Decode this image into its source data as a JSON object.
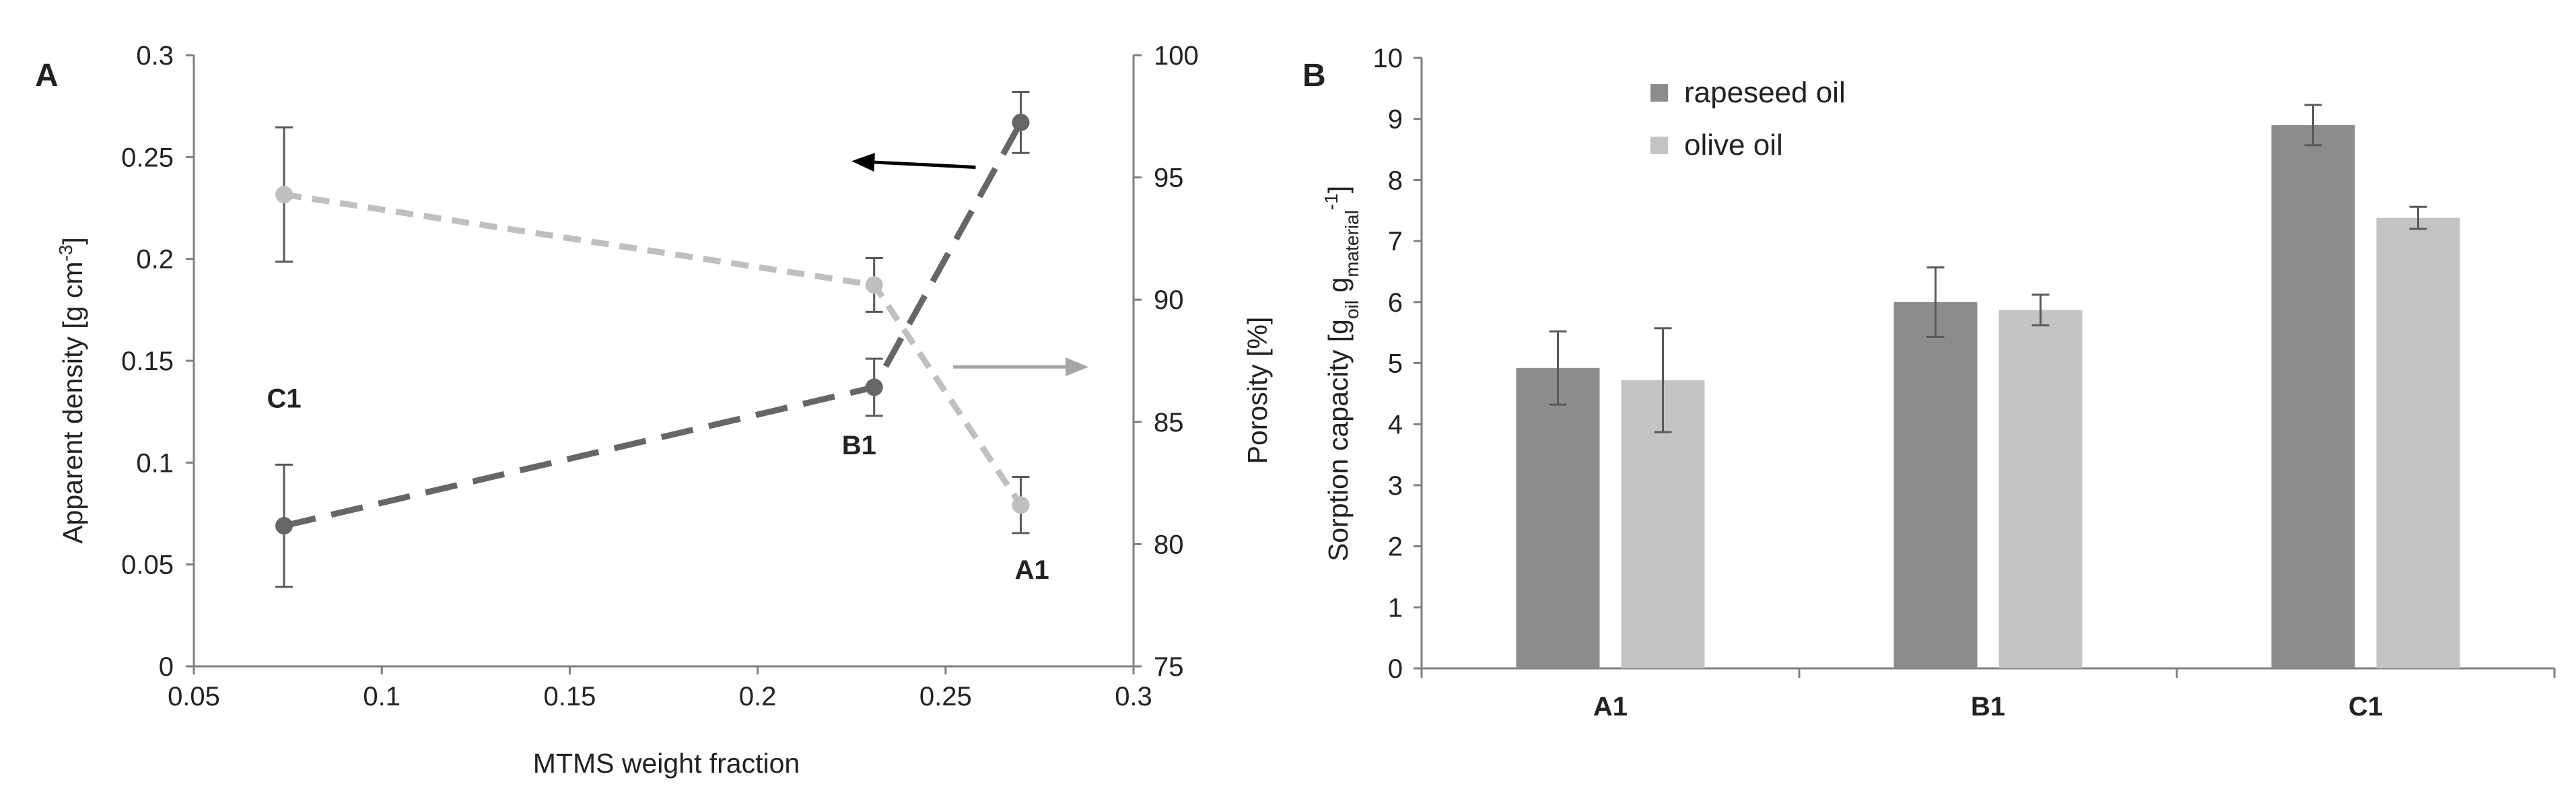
{
  "panels": {
    "a": {
      "label": "A"
    },
    "b": {
      "label": "B"
    }
  },
  "colors": {
    "dark": "#666666",
    "light": "#bfbfbf",
    "rapeseed": "#8c8c8c",
    "olive": "#c4c4c4",
    "axis": "#7f7f7f",
    "error": "#595959",
    "text": "#222222",
    "arrow_dark": "#000000"
  },
  "chart_data": [
    {
      "type": "line",
      "panel": "A",
      "title": "",
      "xlabel": "MTMS weight fraction",
      "ylabel": "Apparent density [g cm-3]",
      "ylabel_parts": [
        "Apparent density [g cm",
        "-3",
        "]"
      ],
      "y2label": "Porosity [%]",
      "xlim": [
        0.05,
        0.3
      ],
      "ylim": [
        0,
        0.3
      ],
      "y2lim": [
        75,
        100
      ],
      "xticks": [
        0.05,
        0.1,
        0.15,
        0.2,
        0.25,
        0.3
      ],
      "xtick_labels": [
        "0.05",
        "0.1",
        "0.15",
        "0.2",
        "0.25",
        "0.3"
      ],
      "yticks": [
        0,
        0.05,
        0.1,
        0.15,
        0.2,
        0.25,
        0.3
      ],
      "ytick_labels": [
        "0",
        "0.05",
        "0.1",
        "0.15",
        "0.2",
        "0.25",
        "0.3"
      ],
      "y2ticks": [
        75,
        80,
        85,
        90,
        95,
        100
      ],
      "y2tick_labels": [
        "75",
        "80",
        "85",
        "90",
        "95",
        "100"
      ],
      "series": [
        {
          "name": "Apparent density",
          "axis": "left",
          "color": "#666666",
          "dash": "long",
          "x": [
            0.074,
            0.231,
            0.27
          ],
          "y": [
            0.069,
            0.137,
            0.267
          ],
          "err": [
            0.03,
            0.014,
            0.015
          ]
        },
        {
          "name": "Porosity",
          "axis": "right",
          "color": "#bfbfbf",
          "dash": "short",
          "x": [
            0.074,
            0.231,
            0.27
          ],
          "y": [
            94.3,
            90.6,
            81.6
          ],
          "err": [
            2.75,
            1.1,
            1.15
          ]
        }
      ],
      "annotations": [
        {
          "text": "C1",
          "x": 0.074,
          "y": 0.127
        },
        {
          "text": "B1",
          "x": 0.227,
          "y": 0.104
        },
        {
          "text": "A1",
          "x": 0.273,
          "y": 0.043
        }
      ],
      "arrows": [
        {
          "from": [
            0.258,
            0.245
          ],
          "to": [
            0.225,
            0.248
          ],
          "color": "#000000",
          "meaning": "left axis"
        },
        {
          "from": [
            0.252,
            0.147
          ],
          "to": [
            0.288,
            0.147
          ],
          "color": "#a6a6a6",
          "meaning": "right axis"
        }
      ]
    },
    {
      "type": "bar",
      "panel": "B",
      "title": "",
      "xlabel": "",
      "ylabel": "Sorption capacity [goil gmaterial-1]",
      "ylabel_parts": [
        "Sorption capacity [g",
        "oil",
        " g",
        "material",
        "-1",
        "]"
      ],
      "ylim": [
        0,
        10
      ],
      "yticks": [
        0,
        1,
        2,
        3,
        4,
        5,
        6,
        7,
        8,
        9,
        10
      ],
      "ytick_labels": [
        "0",
        "1",
        "2",
        "3",
        "4",
        "5",
        "6",
        "7",
        "8",
        "9",
        "10"
      ],
      "categories": [
        "A1",
        "B1",
        "C1"
      ],
      "legend_position": "top-left",
      "series": [
        {
          "name": "rapeseed oil",
          "color": "#8c8c8c",
          "values": [
            4.92,
            6.0,
            8.9
          ],
          "err": [
            0.6,
            0.57,
            0.33
          ]
        },
        {
          "name": "olive oil",
          "color": "#c4c4c4",
          "values": [
            4.72,
            5.87,
            7.38
          ],
          "err": [
            0.85,
            0.25,
            0.18
          ]
        }
      ]
    }
  ]
}
